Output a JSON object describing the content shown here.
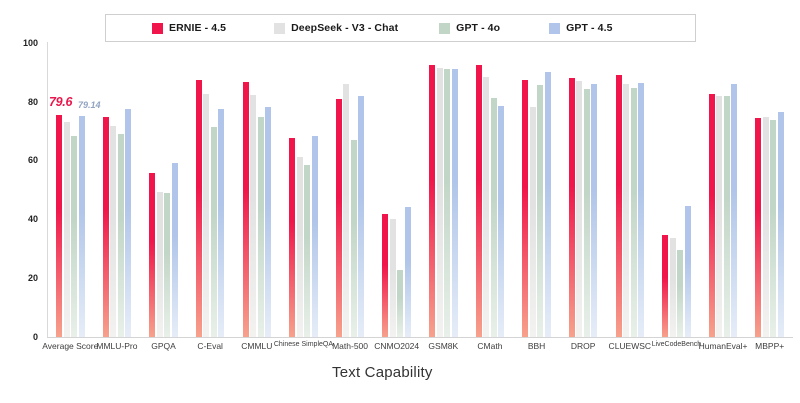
{
  "legend": {
    "items": [
      {
        "label": "ERNIE - 4.5",
        "color": "#F0164B"
      },
      {
        "label": "DeepSeek - V3 - Chat",
        "color": "#E2E2E2"
      },
      {
        "label": "GPT - 4o",
        "color": "#C2D6C7"
      },
      {
        "label": "GPT - 4.5",
        "color": "#B0C5E9"
      }
    ]
  },
  "annotations": {
    "ernie_average": "79.6",
    "gpt45_average": "79.14"
  },
  "chart_data": {
    "type": "bar",
    "title": "",
    "xlabel": "Text Capability",
    "ylabel": "",
    "ylim": [
      0,
      100
    ],
    "y_ticks": [
      0,
      20,
      40,
      60,
      80,
      100
    ],
    "grid": false,
    "legend_position": "top",
    "categories": [
      "Average Score",
      "MMLU-Pro",
      "GPQA",
      "C-Eval",
      "CMMLU",
      "Chinese SimpleQA",
      "Math-500",
      "CNMO2024",
      "GSM8K",
      "CMath",
      "BBH",
      "DROP",
      "CLUEWSC",
      "LiveCodeBench",
      "HumanEval+",
      "MBPP+"
    ],
    "small_tick_labels": [
      "Chinese SimpleQA",
      "LiveCodeBench"
    ],
    "series": [
      {
        "name": "ERNIE - 4.5",
        "color": "#F0164B",
        "fade": "#F7A18C",
        "values": [
          79.6,
          78.9,
          59.9,
          91.4,
          90.8,
          71.6,
          85.1,
          46.0,
          96.5,
          96.5,
          91.4,
          91.9,
          93.1,
          38.7,
          86.8,
          78.4
        ]
      },
      {
        "name": "DeepSeek - V3 - Chat",
        "color": "#E2E2E2",
        "fade": "#F3F2F1",
        "values": [
          77.2,
          75.7,
          53.4,
          86.5,
          86.3,
          65.1,
          90.0,
          44.2,
          95.3,
          92.5,
          82.3,
          91.0,
          90.2,
          37.8,
          86.0,
          78.7
        ]
      },
      {
        "name": "GPT - 4o",
        "color": "#C2D6C7",
        "fade": "#E8F0E9",
        "values": [
          72.4,
          72.9,
          53.1,
          75.5,
          78.9,
          62.4,
          71.0,
          26.8,
          95.1,
          85.4,
          89.7,
          88.5,
          88.8,
          33.6,
          85.8,
          77.7
        ]
      },
      {
        "name": "GPT - 4.5",
        "color": "#B0C5E9",
        "fade": "#E6EDF8",
        "values": [
          79.14,
          81.4,
          63.1,
          81.7,
          82.3,
          72.4,
          86.0,
          48.3,
          95.0,
          82.6,
          94.2,
          89.9,
          90.5,
          48.7,
          90.2,
          80.6
        ]
      }
    ],
    "bar_labels": [
      {
        "category": "Average Score",
        "series": "ERNIE - 4.5",
        "text": "79.6"
      },
      {
        "category": "Average Score",
        "series": "GPT - 4.5",
        "text": "79.14"
      }
    ]
  }
}
